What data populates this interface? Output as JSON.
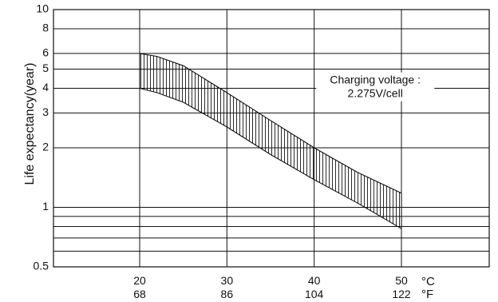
{
  "chart_data": {
    "type": "area",
    "title": "",
    "ylabel": "Life expectancy(year)",
    "xlabel": "",
    "x_unit_primary": "°C",
    "x_unit_secondary": "°F",
    "y_scale": "log",
    "ylim": [
      0.5,
      10
    ],
    "xlim": [
      10,
      60
    ],
    "y_ticks": [
      {
        "value": 0.5,
        "label": "0.5"
      },
      {
        "value": 1,
        "label": "1"
      },
      {
        "value": 2,
        "label": "2"
      },
      {
        "value": 3,
        "label": "3"
      },
      {
        "value": 4,
        "label": "4"
      },
      {
        "value": 5,
        "label": "5"
      },
      {
        "value": 6,
        "label": "6"
      },
      {
        "value": 8,
        "label": "8"
      },
      {
        "value": 10,
        "label": "10"
      }
    ],
    "y_gridlines": [
      0.6,
      0.7,
      0.8,
      0.9,
      1,
      2,
      3,
      4,
      5,
      6,
      8,
      10
    ],
    "x_ticks": [
      {
        "value": 20,
        "label_c": "20",
        "label_f": "68"
      },
      {
        "value": 30,
        "label_c": "30",
        "label_f": "86"
      },
      {
        "value": 40,
        "label_c": "40",
        "label_f": "104"
      },
      {
        "value": 50,
        "label_c": "50",
        "label_f": "122"
      }
    ],
    "grid": true,
    "series": [
      {
        "role": "upper_bound",
        "x": [
          20,
          22,
          25,
          30,
          35,
          40,
          45,
          50
        ],
        "y": [
          6.0,
          5.8,
          5.2,
          3.8,
          2.75,
          2.0,
          1.5,
          1.18
        ]
      },
      {
        "role": "lower_bound",
        "x": [
          20,
          22,
          25,
          30,
          35,
          40,
          45,
          50
        ],
        "y": [
          4.0,
          3.8,
          3.4,
          2.55,
          1.85,
          1.38,
          1.05,
          0.78
        ]
      }
    ],
    "annotations": [
      {
        "line1": "Charging voltage :",
        "line2": "2.275V/cell",
        "at_x": 47,
        "at_y": 4.3
      }
    ]
  }
}
